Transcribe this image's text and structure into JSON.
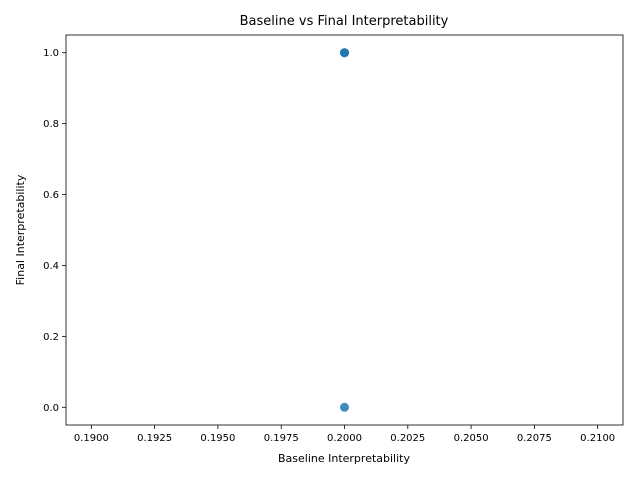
{
  "chart_data": {
    "type": "scatter",
    "title": "Baseline vs Final Interpretability",
    "xlabel": "Baseline Interpretability",
    "ylabel": "Final Interpretability",
    "xlim": [
      0.189,
      0.211
    ],
    "ylim": [
      -0.05,
      1.05
    ],
    "x_ticks": [
      "0.1900",
      "0.1925",
      "0.1950",
      "0.1975",
      "0.2000",
      "0.2025",
      "0.2050",
      "0.2075",
      "0.2100"
    ],
    "y_ticks": [
      "0.0",
      "0.2",
      "0.4",
      "0.6",
      "0.8",
      "1.0"
    ],
    "x_tick_values": [
      0.19,
      0.1925,
      0.195,
      0.1975,
      0.2,
      0.2025,
      0.205,
      0.2075,
      0.21
    ],
    "y_tick_values": [
      0.0,
      0.2,
      0.4,
      0.6,
      0.8,
      1.0
    ],
    "points": [
      {
        "x": 0.2,
        "y": 1.0
      },
      {
        "x": 0.2,
        "y": 1.0
      },
      {
        "x": 0.2,
        "y": 1.0
      },
      {
        "x": 0.2,
        "y": 0.0
      }
    ],
    "grid": false,
    "marker_color": "#1f77b4"
  }
}
